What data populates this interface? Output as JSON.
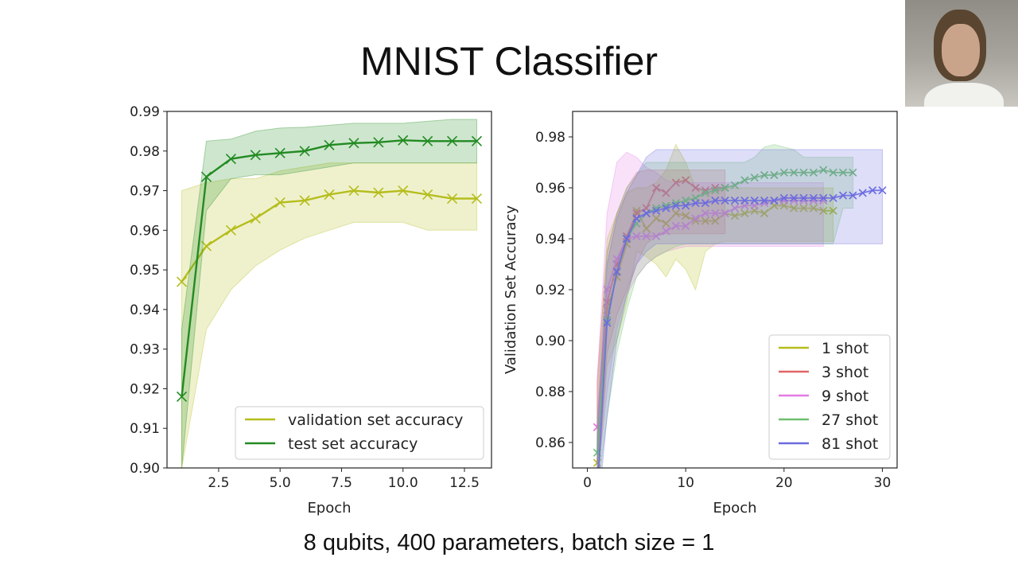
{
  "slide": {
    "title": "MNIST Classifier",
    "caption": "8 qubits, 400 parameters, batch size = 1"
  },
  "chart_data": [
    {
      "type": "line",
      "xlabel": "Epoch",
      "ylabel": "",
      "xlim": [
        0.4,
        13.6
      ],
      "ylim": [
        0.9,
        0.99
      ],
      "xticks": [
        2.5,
        5.0,
        7.5,
        10.0,
        12.5
      ],
      "xtick_labels": [
        "2.5",
        "5.0",
        "7.5",
        "10.0",
        "12.5"
      ],
      "yticks": [
        0.9,
        0.91,
        0.92,
        0.93,
        0.94,
        0.95,
        0.96,
        0.97,
        0.98,
        0.99
      ],
      "ytick_labels": [
        "0.90",
        "0.91",
        "0.92",
        "0.93",
        "0.94",
        "0.95",
        "0.96",
        "0.97",
        "0.98",
        "0.99"
      ],
      "grid": false,
      "legend_position": "bottom-right",
      "x": [
        1,
        2,
        3,
        4,
        5,
        6,
        7,
        8,
        9,
        10,
        11,
        12,
        13
      ],
      "series": [
        {
          "name": "validation set accuracy",
          "color": "#b5bd1c",
          "values": [
            0.947,
            0.956,
            0.96,
            0.963,
            0.967,
            0.9675,
            0.969,
            0.97,
            0.9695,
            0.97,
            0.969,
            0.968,
            0.968
          ],
          "band_low": [
            0.9,
            0.935,
            0.945,
            0.951,
            0.955,
            0.958,
            0.96,
            0.962,
            0.962,
            0.962,
            0.96,
            0.96,
            0.96
          ],
          "band_high": [
            0.97,
            0.972,
            0.973,
            0.973,
            0.975,
            0.976,
            0.977,
            0.977,
            0.977,
            0.977,
            0.977,
            0.977,
            0.977
          ]
        },
        {
          "name": "test set accuracy",
          "color": "#228b22",
          "values": [
            0.918,
            0.9735,
            0.978,
            0.979,
            0.9795,
            0.98,
            0.9815,
            0.982,
            0.9822,
            0.9827,
            0.9825,
            0.9825,
            0.9825
          ],
          "band_low": [
            0.9,
            0.965,
            0.973,
            0.974,
            0.974,
            0.975,
            0.976,
            0.977,
            0.977,
            0.977,
            0.977,
            0.977,
            0.977
          ],
          "band_high": [
            0.935,
            0.9825,
            0.983,
            0.985,
            0.9858,
            0.986,
            0.9865,
            0.987,
            0.987,
            0.987,
            0.9875,
            0.988,
            0.988
          ]
        }
      ]
    },
    {
      "type": "line",
      "xlabel": "Epoch",
      "ylabel": "Validation Set Accuracy",
      "xlim": [
        -1.5,
        31.5
      ],
      "ylim": [
        0.85,
        0.99
      ],
      "xticks": [
        0,
        10,
        20,
        30
      ],
      "xtick_labels": [
        "0",
        "10",
        "20",
        "30"
      ],
      "yticks": [
        0.86,
        0.88,
        0.9,
        0.92,
        0.94,
        0.96,
        0.98
      ],
      "ytick_labels": [
        "0.86",
        "0.88",
        "0.90",
        "0.92",
        "0.94",
        "0.96",
        "0.98"
      ],
      "grid": false,
      "legend_position": "bottom-right",
      "series": [
        {
          "name": "1 shot",
          "color": "#b5bd1c",
          "x": [
            1,
            2,
            3,
            4,
            5,
            6,
            7,
            8,
            9,
            10,
            11,
            12,
            13,
            14,
            15,
            16,
            17,
            18,
            19,
            20,
            21,
            22,
            23,
            24,
            25
          ],
          "values": [
            0.852,
            0.912,
            0.925,
            0.938,
            0.951,
            0.944,
            0.948,
            0.946,
            0.95,
            0.949,
            0.947,
            0.947,
            0.947,
            0.95,
            0.949,
            0.95,
            0.951,
            0.95,
            0.953,
            0.953,
            0.952,
            0.952,
            0.952,
            0.951,
            0.951
          ],
          "band_low": [
            0.84,
            0.89,
            0.9,
            0.915,
            0.935,
            0.933,
            0.93,
            0.925,
            0.932,
            0.928,
            0.92,
            0.935,
            0.938,
            0.939,
            0.939,
            0.939,
            0.939,
            0.939,
            0.939,
            0.939,
            0.939,
            0.939,
            0.939,
            0.939,
            0.939
          ],
          "band_high": [
            0.88,
            0.94,
            0.95,
            0.958,
            0.96,
            0.96,
            0.962,
            0.967,
            0.977,
            0.97,
            0.96,
            0.958,
            0.958,
            0.96,
            0.96,
            0.96,
            0.96,
            0.96,
            0.96,
            0.96,
            0.96,
            0.96,
            0.96,
            0.96,
            0.96
          ]
        },
        {
          "name": "3 shot",
          "color": "#e06666",
          "x": [
            1,
            2,
            3,
            4,
            5,
            6,
            7,
            8,
            9,
            10,
            11,
            12,
            13,
            14
          ],
          "values": [
            0.866,
            0.915,
            0.93,
            0.941,
            0.95,
            0.952,
            0.96,
            0.958,
            0.962,
            0.963,
            0.96,
            0.959,
            0.96,
            0.96
          ],
          "band_low": [
            0.84,
            0.895,
            0.91,
            0.92,
            0.93,
            0.938,
            0.941,
            0.942,
            0.942,
            0.942,
            0.942,
            0.942,
            0.942,
            0.942
          ],
          "band_high": [
            0.885,
            0.935,
            0.95,
            0.96,
            0.966,
            0.967,
            0.967,
            0.967,
            0.967,
            0.967,
            0.967,
            0.967,
            0.967,
            0.967
          ]
        },
        {
          "name": "9 shot",
          "color": "#e37be3",
          "x": [
            1,
            2,
            3,
            4,
            5,
            6,
            7,
            8,
            9,
            10,
            11,
            12,
            13,
            14,
            15,
            16,
            17,
            18,
            19,
            20,
            21,
            22,
            23,
            24
          ],
          "values": [
            0.866,
            0.92,
            0.932,
            0.94,
            0.941,
            0.941,
            0.941,
            0.943,
            0.945,
            0.945,
            0.948,
            0.95,
            0.95,
            0.95,
            0.952,
            0.953,
            0.953,
            0.954,
            0.955,
            0.955,
            0.955,
            0.955,
            0.955,
            0.955
          ],
          "band_low": [
            0.845,
            0.88,
            0.905,
            0.918,
            0.925,
            0.93,
            0.933,
            0.935,
            0.936,
            0.937,
            0.937,
            0.937,
            0.937,
            0.937,
            0.937,
            0.937,
            0.937,
            0.937,
            0.937,
            0.937,
            0.937,
            0.937,
            0.937,
            0.937
          ],
          "band_high": [
            0.885,
            0.95,
            0.97,
            0.974,
            0.972,
            0.968,
            0.966,
            0.963,
            0.962,
            0.962,
            0.962,
            0.962,
            0.962,
            0.962,
            0.962,
            0.962,
            0.962,
            0.962,
            0.962,
            0.962,
            0.962,
            0.962,
            0.962,
            0.962
          ]
        },
        {
          "name": "27 shot",
          "color": "#6fbf6f",
          "x": [
            1,
            2,
            3,
            4,
            5,
            6,
            7,
            8,
            9,
            10,
            11,
            12,
            13,
            14,
            15,
            16,
            17,
            18,
            19,
            20,
            21,
            22,
            23,
            24,
            25,
            26,
            27
          ],
          "values": [
            0.856,
            0.908,
            0.927,
            0.94,
            0.946,
            0.95,
            0.952,
            0.953,
            0.954,
            0.955,
            0.956,
            0.958,
            0.959,
            0.96,
            0.961,
            0.963,
            0.964,
            0.965,
            0.965,
            0.966,
            0.966,
            0.966,
            0.966,
            0.967,
            0.966,
            0.966,
            0.966
          ],
          "band_low": [
            0.84,
            0.87,
            0.895,
            0.912,
            0.925,
            0.93,
            0.933,
            0.935,
            0.937,
            0.938,
            0.938,
            0.938,
            0.938,
            0.938,
            0.938,
            0.938,
            0.938,
            0.938,
            0.938,
            0.938,
            0.938,
            0.938,
            0.938,
            0.938,
            0.938,
            0.952,
            0.952
          ],
          "band_high": [
            0.87,
            0.935,
            0.95,
            0.96,
            0.965,
            0.97,
            0.97,
            0.97,
            0.97,
            0.97,
            0.97,
            0.97,
            0.97,
            0.97,
            0.97,
            0.97,
            0.972,
            0.976,
            0.977,
            0.976,
            0.975,
            0.972,
            0.972,
            0.972,
            0.972,
            0.972,
            0.972
          ]
        },
        {
          "name": "81 shot",
          "color": "#6a6ae0",
          "x": [
            1,
            2,
            3,
            4,
            5,
            6,
            7,
            8,
            9,
            10,
            11,
            12,
            13,
            14,
            15,
            16,
            17,
            18,
            19,
            20,
            21,
            22,
            23,
            24,
            25,
            26,
            27,
            28,
            29,
            30
          ],
          "values": [
            0.84,
            0.907,
            0.927,
            0.94,
            0.948,
            0.95,
            0.951,
            0.952,
            0.953,
            0.953,
            0.954,
            0.954,
            0.955,
            0.955,
            0.955,
            0.955,
            0.955,
            0.955,
            0.955,
            0.956,
            0.956,
            0.956,
            0.956,
            0.956,
            0.956,
            0.957,
            0.957,
            0.958,
            0.959,
            0.959
          ],
          "band_low": [
            0.83,
            0.87,
            0.9,
            0.918,
            0.93,
            0.935,
            0.938,
            0.938,
            0.938,
            0.938,
            0.938,
            0.938,
            0.938,
            0.938,
            0.938,
            0.938,
            0.938,
            0.938,
            0.938,
            0.938,
            0.938,
            0.938,
            0.938,
            0.938,
            0.938,
            0.938,
            0.938,
            0.938,
            0.938,
            0.938
          ],
          "band_high": [
            0.86,
            0.93,
            0.948,
            0.958,
            0.965,
            0.972,
            0.975,
            0.975,
            0.975,
            0.975,
            0.975,
            0.975,
            0.975,
            0.975,
            0.975,
            0.975,
            0.975,
            0.975,
            0.975,
            0.975,
            0.975,
            0.975,
            0.975,
            0.975,
            0.975,
            0.975,
            0.975,
            0.975,
            0.975,
            0.975
          ]
        }
      ]
    }
  ]
}
